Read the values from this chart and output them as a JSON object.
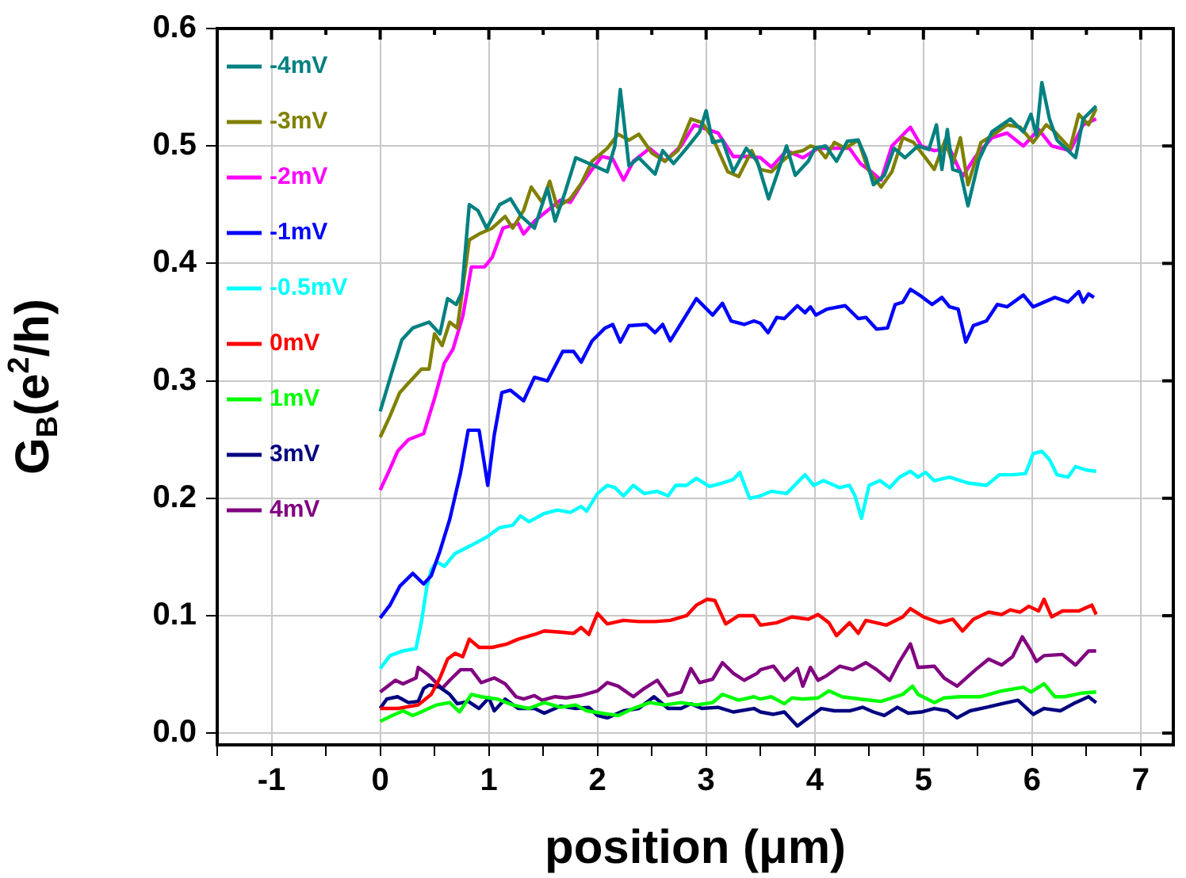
{
  "chart_data": {
    "type": "line",
    "xlabel": "position (μm)",
    "ylabel": "G$_{B}$(e$^{2}$/h)",
    "xlim": [
      -1.5,
      7.3
    ],
    "ylim": [
      -0.01,
      0.6
    ],
    "xticks": [
      {
        "value": -1.5,
        "label": null
      },
      -1,
      {
        "value": -0.5,
        "label": null
      },
      0,
      {
        "value": 0.5,
        "label": null
      },
      1,
      {
        "value": 1.5,
        "label": null
      },
      2,
      {
        "value": 2.5,
        "label": null
      },
      3,
      {
        "value": 3.5,
        "label": null
      },
      4,
      {
        "value": 4.5,
        "label": null
      },
      5,
      {
        "value": 5.5,
        "label": null
      },
      6,
      {
        "value": 6.5,
        "label": null
      },
      7
    ],
    "yticks": [
      {
        "value": 0,
        "label": "0.0"
      },
      {
        "value": 0.1,
        "label": "0.1"
      },
      {
        "value": 0.2,
        "label": "0.2"
      },
      {
        "value": 0.3,
        "label": "0.3"
      },
      {
        "value": 0.4,
        "label": "0.4"
      },
      {
        "value": 0.5,
        "label": "0.5"
      },
      {
        "value": 0.6,
        "label": "0.6"
      }
    ],
    "grid": true,
    "legend": "top left",
    "marker": "none",
    "line_style": "solid",
    "series": [
      {
        "name": "-4mV",
        "color": "#008080",
        "x": [
          0,
          0.1,
          0.2,
          0.3,
          0.45,
          0.55,
          0.62,
          0.7,
          0.75,
          0.82,
          0.9,
          0.98,
          1.1,
          1.2,
          1.3,
          1.42,
          1.54,
          1.61,
          1.7,
          1.8,
          1.95,
          2.09,
          2.16,
          2.21,
          2.29,
          2.38,
          2.53,
          2.6,
          2.7,
          2.82,
          2.94,
          3.0,
          3.06,
          3.15,
          3.25,
          3.37,
          3.47,
          3.575,
          3.65,
          3.74,
          3.82,
          3.94,
          4.0,
          4.1,
          4.2,
          4.3,
          4.4,
          4.47,
          4.54,
          4.64,
          4.73,
          4.83,
          4.95,
          5.05,
          5.12,
          5.17,
          5.22,
          5.27,
          5.34,
          5.41,
          5.51,
          5.63,
          5.8,
          5.92,
          5.99,
          6.04,
          6.09,
          6.16,
          6.23,
          6.4,
          6.47,
          6.59
        ],
        "values": [
          0.274,
          0.305,
          0.335,
          0.345,
          0.35,
          0.34,
          0.37,
          0.365,
          0.375,
          0.45,
          0.445,
          0.43,
          0.45,
          0.455,
          0.44,
          0.43,
          0.464,
          0.436,
          0.46,
          0.49,
          0.484,
          0.478,
          0.5,
          0.548,
          0.483,
          0.49,
          0.476,
          0.496,
          0.485,
          0.498,
          0.512,
          0.53,
          0.503,
          0.505,
          0.478,
          0.498,
          0.487,
          0.455,
          0.475,
          0.5,
          0.475,
          0.487,
          0.498,
          0.5,
          0.487,
          0.504,
          0.505,
          0.49,
          0.467,
          0.475,
          0.498,
          0.49,
          0.5,
          0.497,
          0.518,
          0.48,
          0.514,
          0.48,
          0.478,
          0.449,
          0.488,
          0.512,
          0.523,
          0.512,
          0.527,
          0.509,
          0.554,
          0.523,
          0.505,
          0.49,
          0.523,
          0.534
        ]
      },
      {
        "name": "-3mV",
        "color": "#808000",
        "x": [
          0,
          0.09,
          0.18,
          0.28,
          0.38,
          0.45,
          0.5,
          0.57,
          0.64,
          0.71,
          0.82,
          0.91,
          1.03,
          1.15,
          1.22,
          1.32,
          1.39,
          1.49,
          1.56,
          1.63,
          1.75,
          1.85,
          1.95,
          2.09,
          2.19,
          2.29,
          2.38,
          2.5,
          2.62,
          2.74,
          2.86,
          2.96,
          3.06,
          3.2,
          3.3,
          3.42,
          3.5,
          3.6,
          3.7,
          3.79,
          3.89,
          3.96,
          4.03,
          4.1,
          4.18,
          4.28,
          4.4,
          4.49,
          4.61,
          4.71,
          4.81,
          4.91,
          5.01,
          5.1,
          5.2,
          5.27,
          5.34,
          5.41,
          5.53,
          5.65,
          5.77,
          5.89,
          6.01,
          6.13,
          6.21,
          6.35,
          6.43,
          6.52,
          6.59
        ],
        "values": [
          0.252,
          0.27,
          0.29,
          0.3,
          0.31,
          0.31,
          0.34,
          0.33,
          0.35,
          0.345,
          0.42,
          0.425,
          0.43,
          0.44,
          0.43,
          0.445,
          0.465,
          0.452,
          0.47,
          0.448,
          0.455,
          0.468,
          0.487,
          0.498,
          0.51,
          0.505,
          0.51,
          0.494,
          0.487,
          0.496,
          0.523,
          0.52,
          0.507,
          0.478,
          0.474,
          0.496,
          0.48,
          0.478,
          0.487,
          0.494,
          0.496,
          0.5,
          0.498,
          0.49,
          0.503,
          0.498,
          0.505,
          0.48,
          0.465,
          0.478,
          0.507,
          0.503,
          0.491,
          0.48,
          0.505,
          0.485,
          0.507,
          0.467,
          0.503,
          0.51,
          0.518,
          0.516,
          0.503,
          0.518,
          0.512,
          0.498,
          0.527,
          0.518,
          0.532
        ]
      },
      {
        "name": "-2mV",
        "color": "#ff00ff",
        "x": [
          0,
          0.09,
          0.16,
          0.26,
          0.4,
          0.5,
          0.59,
          0.67,
          0.76,
          0.84,
          0.96,
          1.03,
          1.13,
          1.27,
          1.32,
          1.42,
          1.54,
          1.66,
          1.75,
          1.85,
          1.95,
          2.04,
          2.14,
          2.24,
          2.33,
          2.48,
          2.62,
          2.77,
          2.89,
          3.01,
          3.11,
          3.25,
          3.4,
          3.5,
          3.6,
          3.74,
          3.89,
          4.03,
          4.18,
          4.32,
          4.42,
          4.52,
          4.61,
          4.71,
          4.88,
          4.98,
          5.1,
          5.24,
          5.36,
          5.48,
          5.63,
          5.77,
          5.92,
          6.06,
          6.18,
          6.35,
          6.47,
          6.59
        ],
        "values": [
          0.207,
          0.225,
          0.24,
          0.25,
          0.255,
          0.285,
          0.315,
          0.327,
          0.355,
          0.397,
          0.397,
          0.405,
          0.43,
          0.434,
          0.425,
          0.436,
          0.445,
          0.454,
          0.452,
          0.467,
          0.48,
          0.491,
          0.489,
          0.471,
          0.487,
          0.498,
          0.487,
          0.5,
          0.518,
          0.514,
          0.511,
          0.491,
          0.491,
          0.49,
          0.482,
          0.496,
          0.49,
          0.498,
          0.498,
          0.498,
          0.485,
          0.478,
          0.471,
          0.5,
          0.516,
          0.5,
          0.496,
          0.498,
          0.474,
          0.491,
          0.507,
          0.511,
          0.5,
          0.514,
          0.5,
          0.496,
          0.518,
          0.523
        ]
      },
      {
        "name": "-1mV",
        "color": "#0000ff",
        "x": [
          0,
          0.09,
          0.18,
          0.3,
          0.4,
          0.47,
          0.55,
          0.64,
          0.74,
          0.81,
          0.91,
          0.99,
          1.05,
          1.12,
          1.2,
          1.32,
          1.42,
          1.54,
          1.68,
          1.78,
          1.85,
          1.95,
          2.07,
          2.14,
          2.21,
          2.29,
          2.45,
          2.53,
          2.6,
          2.67,
          2.77,
          2.91,
          3.06,
          3.15,
          3.23,
          3.35,
          3.44,
          3.5,
          3.57,
          3.65,
          3.72,
          3.84,
          3.91,
          3.96,
          4.01,
          4.11,
          4.28,
          4.4,
          4.47,
          4.57,
          4.67,
          4.74,
          4.81,
          4.88,
          4.98,
          5.08,
          5.17,
          5.24,
          5.32,
          5.39,
          5.46,
          5.58,
          5.68,
          5.77,
          5.92,
          6.01,
          6.21,
          6.33,
          6.43,
          6.47,
          6.52,
          6.57
        ],
        "values": [
          0.098,
          0.109,
          0.125,
          0.136,
          0.127,
          0.134,
          0.155,
          0.182,
          0.222,
          0.258,
          0.258,
          0.211,
          0.254,
          0.29,
          0.292,
          0.283,
          0.303,
          0.3,
          0.325,
          0.325,
          0.316,
          0.334,
          0.345,
          0.348,
          0.333,
          0.347,
          0.348,
          0.341,
          0.348,
          0.334,
          0.349,
          0.37,
          0.356,
          0.366,
          0.351,
          0.348,
          0.351,
          0.349,
          0.341,
          0.354,
          0.353,
          0.364,
          0.358,
          0.363,
          0.356,
          0.361,
          0.364,
          0.353,
          0.354,
          0.344,
          0.345,
          0.365,
          0.367,
          0.378,
          0.372,
          0.365,
          0.371,
          0.363,
          0.361,
          0.333,
          0.347,
          0.351,
          0.365,
          0.363,
          0.373,
          0.363,
          0.371,
          0.367,
          0.376,
          0.367,
          0.374,
          0.371
        ]
      },
      {
        "name": "-0.5mV",
        "color": "#00ffff",
        "x": [
          0,
          0.09,
          0.21,
          0.33,
          0.38,
          0.43,
          0.47,
          0.52,
          0.59,
          0.69,
          0.84,
          0.98,
          1.1,
          1.22,
          1.29,
          1.37,
          1.51,
          1.63,
          1.75,
          1.85,
          1.9,
          2.0,
          2.09,
          2.16,
          2.24,
          2.33,
          2.43,
          2.55,
          2.65,
          2.72,
          2.82,
          2.91,
          3.03,
          3.15,
          3.25,
          3.31,
          3.4,
          3.5,
          3.6,
          3.74,
          3.91,
          3.99,
          4.08,
          4.23,
          4.32,
          4.37,
          4.43,
          4.5,
          4.6,
          4.69,
          4.78,
          4.88,
          4.95,
          5.02,
          5.1,
          5.24,
          5.41,
          5.58,
          5.7,
          5.82,
          5.94,
          6.01,
          6.09,
          6.16,
          6.23,
          6.33,
          6.4,
          6.5,
          6.59
        ],
        "values": [
          0.055,
          0.066,
          0.07,
          0.072,
          0.095,
          0.125,
          0.139,
          0.146,
          0.142,
          0.153,
          0.16,
          0.167,
          0.175,
          0.177,
          0.185,
          0.18,
          0.187,
          0.19,
          0.188,
          0.193,
          0.189,
          0.204,
          0.211,
          0.209,
          0.202,
          0.211,
          0.204,
          0.206,
          0.202,
          0.211,
          0.211,
          0.217,
          0.21,
          0.213,
          0.216,
          0.222,
          0.2,
          0.202,
          0.206,
          0.204,
          0.22,
          0.211,
          0.215,
          0.209,
          0.211,
          0.202,
          0.183,
          0.211,
          0.215,
          0.209,
          0.218,
          0.223,
          0.218,
          0.222,
          0.215,
          0.218,
          0.213,
          0.211,
          0.22,
          0.22,
          0.221,
          0.238,
          0.24,
          0.233,
          0.22,
          0.218,
          0.227,
          0.224,
          0.223
        ]
      },
      {
        "name": "0mV",
        "color": "#ff0000",
        "x": [
          0,
          0.16,
          0.35,
          0.47,
          0.55,
          0.62,
          0.69,
          0.76,
          0.82,
          0.91,
          1.03,
          1.17,
          1.27,
          1.42,
          1.51,
          1.66,
          1.78,
          1.85,
          1.92,
          2.0,
          2.09,
          2.24,
          2.38,
          2.53,
          2.67,
          2.82,
          2.91,
          3.01,
          3.08,
          3.18,
          3.3,
          3.44,
          3.5,
          3.65,
          3.79,
          3.94,
          4.03,
          4.13,
          4.2,
          4.32,
          4.4,
          4.47,
          4.66,
          4.81,
          4.88,
          5.0,
          5.15,
          5.27,
          5.36,
          5.46,
          5.6,
          5.72,
          5.8,
          5.89,
          5.97,
          6.06,
          6.11,
          6.18,
          6.28,
          6.43,
          6.55,
          6.59
        ],
        "values": [
          0.021,
          0.021,
          0.024,
          0.033,
          0.047,
          0.063,
          0.068,
          0.065,
          0.08,
          0.073,
          0.073,
          0.076,
          0.08,
          0.084,
          0.087,
          0.086,
          0.085,
          0.09,
          0.084,
          0.102,
          0.093,
          0.096,
          0.095,
          0.095,
          0.096,
          0.1,
          0.109,
          0.114,
          0.113,
          0.093,
          0.1,
          0.1,
          0.092,
          0.094,
          0.099,
          0.097,
          0.101,
          0.094,
          0.083,
          0.094,
          0.085,
          0.096,
          0.092,
          0.099,
          0.106,
          0.099,
          0.094,
          0.097,
          0.087,
          0.097,
          0.103,
          0.101,
          0.105,
          0.103,
          0.108,
          0.104,
          0.114,
          0.099,
          0.104,
          0.104,
          0.109,
          0.101
        ]
      },
      {
        "name": "1mV",
        "color": "#00ff00",
        "x": [
          0,
          0.11,
          0.21,
          0.3,
          0.4,
          0.52,
          0.64,
          0.73,
          0.84,
          0.93,
          1.08,
          1.22,
          1.37,
          1.51,
          1.66,
          1.8,
          1.9,
          2.04,
          2.19,
          2.33,
          2.48,
          2.62,
          2.77,
          2.91,
          3.06,
          3.15,
          3.3,
          3.44,
          3.5,
          3.6,
          3.72,
          3.79,
          3.89,
          4.03,
          4.13,
          4.25,
          4.42,
          4.61,
          4.81,
          4.9,
          4.95,
          5.1,
          5.19,
          5.34,
          5.53,
          5.72,
          5.92,
          5.99,
          6.11,
          6.21,
          6.3,
          6.45,
          6.59
        ],
        "values": [
          0.01,
          0.015,
          0.019,
          0.015,
          0.019,
          0.024,
          0.026,
          0.018,
          0.033,
          0.031,
          0.029,
          0.024,
          0.021,
          0.026,
          0.022,
          0.024,
          0.019,
          0.017,
          0.015,
          0.021,
          0.026,
          0.024,
          0.026,
          0.024,
          0.026,
          0.033,
          0.028,
          0.031,
          0.029,
          0.031,
          0.025,
          0.03,
          0.029,
          0.03,
          0.036,
          0.031,
          0.029,
          0.027,
          0.033,
          0.04,
          0.033,
          0.026,
          0.03,
          0.031,
          0.031,
          0.036,
          0.039,
          0.035,
          0.042,
          0.031,
          0.031,
          0.034,
          0.035
        ]
      },
      {
        "name": "3mV",
        "color": "#000080",
        "x": [
          0,
          0.06,
          0.16,
          0.26,
          0.35,
          0.4,
          0.45,
          0.55,
          0.64,
          0.71,
          0.81,
          0.91,
          1.0,
          1.05,
          1.15,
          1.27,
          1.42,
          1.51,
          1.66,
          1.8,
          1.92,
          2.0,
          2.09,
          2.24,
          2.38,
          2.52,
          2.65,
          2.77,
          2.86,
          2.96,
          3.11,
          3.25,
          3.44,
          3.5,
          3.62,
          3.72,
          3.84,
          3.94,
          4.06,
          4.18,
          4.32,
          4.44,
          4.54,
          4.64,
          4.76,
          4.86,
          4.98,
          5.1,
          5.22,
          5.31,
          5.43,
          5.58,
          5.72,
          5.87,
          6.01,
          6.11,
          6.26,
          6.4,
          6.52,
          6.59
        ],
        "values": [
          0.021,
          0.029,
          0.031,
          0.026,
          0.027,
          0.038,
          0.041,
          0.039,
          0.033,
          0.025,
          0.027,
          0.021,
          0.03,
          0.019,
          0.029,
          0.021,
          0.021,
          0.017,
          0.023,
          0.021,
          0.022,
          0.015,
          0.013,
          0.019,
          0.021,
          0.031,
          0.021,
          0.021,
          0.025,
          0.021,
          0.022,
          0.018,
          0.021,
          0.018,
          0.016,
          0.018,
          0.006,
          0.013,
          0.021,
          0.019,
          0.019,
          0.022,
          0.018,
          0.015,
          0.022,
          0.017,
          0.018,
          0.021,
          0.019,
          0.013,
          0.019,
          0.022,
          0.025,
          0.028,
          0.016,
          0.021,
          0.019,
          0.026,
          0.031,
          0.026
        ]
      },
      {
        "name": "4mV",
        "color": "#800080",
        "x": [
          0,
          0.14,
          0.21,
          0.33,
          0.35,
          0.45,
          0.57,
          0.64,
          0.74,
          0.84,
          0.93,
          1.05,
          1.15,
          1.25,
          1.32,
          1.42,
          1.49,
          1.61,
          1.71,
          1.85,
          2.0,
          2.09,
          2.19,
          2.33,
          2.43,
          2.55,
          2.65,
          2.77,
          2.86,
          2.94,
          3.06,
          3.15,
          3.25,
          3.35,
          3.47,
          3.5,
          3.62,
          3.72,
          3.84,
          3.89,
          3.96,
          4.03,
          4.11,
          4.23,
          4.35,
          4.47,
          4.57,
          4.69,
          4.78,
          4.88,
          4.95,
          5.1,
          5.19,
          5.31,
          5.48,
          5.6,
          5.72,
          5.82,
          5.91,
          5.99,
          6.04,
          6.11,
          6.28,
          6.4,
          6.52,
          6.59
        ],
        "values": [
          0.035,
          0.045,
          0.042,
          0.047,
          0.056,
          0.049,
          0.038,
          0.045,
          0.054,
          0.054,
          0.043,
          0.047,
          0.042,
          0.031,
          0.029,
          0.032,
          0.028,
          0.031,
          0.03,
          0.032,
          0.036,
          0.043,
          0.04,
          0.031,
          0.038,
          0.045,
          0.032,
          0.035,
          0.055,
          0.043,
          0.046,
          0.06,
          0.051,
          0.045,
          0.051,
          0.054,
          0.057,
          0.045,
          0.055,
          0.04,
          0.056,
          0.045,
          0.049,
          0.057,
          0.054,
          0.06,
          0.054,
          0.045,
          0.061,
          0.076,
          0.056,
          0.057,
          0.047,
          0.04,
          0.054,
          0.063,
          0.058,
          0.065,
          0.082,
          0.07,
          0.061,
          0.066,
          0.067,
          0.058,
          0.07,
          0.07
        ]
      }
    ]
  }
}
